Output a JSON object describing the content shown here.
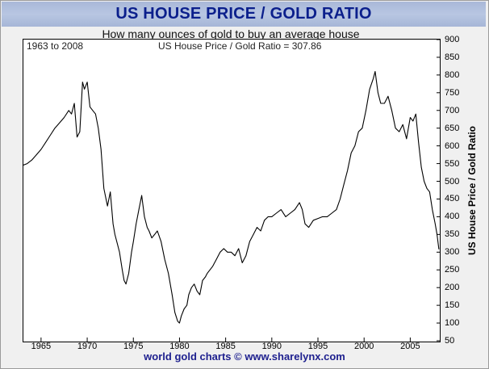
{
  "chart_data": {
    "type": "line",
    "title": "US HOUSE PRICE / GOLD RATIO",
    "subtitle": "How many ounces of gold to buy an average house",
    "annotation_left": "1963 to 2008",
    "annotation_right": "US House Price / Gold Ratio = 307.86",
    "ylabel": "US House Price / Gold Ratio",
    "footer": "world gold charts © www.sharelynx.com",
    "xlim": [
      1963,
      2008.2
    ],
    "ylim": [
      50,
      900
    ],
    "yticks": [
      50,
      100,
      150,
      200,
      250,
      300,
      350,
      400,
      450,
      500,
      550,
      600,
      650,
      700,
      750,
      800,
      850,
      900
    ],
    "xticks": [
      1965,
      1970,
      1975,
      1980,
      1985,
      1990,
      1995,
      2000,
      2005
    ],
    "grid": false,
    "line_color": "#000000",
    "series": [
      {
        "x": [
          1963.0,
          1963.5,
          1964.0,
          1964.5,
          1965.0,
          1965.5,
          1966.0,
          1966.5,
          1967.0,
          1967.5,
          1968.0,
          1968.3,
          1968.6,
          1968.9,
          1969.2,
          1969.5,
          1969.7,
          1970.0,
          1970.3,
          1970.6,
          1970.9,
          1971.2,
          1971.5,
          1971.8,
          1972.2,
          1972.5,
          1972.8,
          1973.0,
          1973.2,
          1973.5,
          1973.8,
          1974.0,
          1974.2,
          1974.5,
          1974.8,
          1975.0,
          1975.3,
          1975.6,
          1975.9,
          1976.2,
          1976.5,
          1976.7,
          1977.0,
          1977.3,
          1977.6,
          1978.0,
          1978.4,
          1978.8,
          1979.2,
          1979.5,
          1979.8,
          1980.0,
          1980.2,
          1980.5,
          1980.8,
          1981.0,
          1981.3,
          1981.6,
          1981.9,
          1982.2,
          1982.5,
          1982.8,
          1983.0,
          1983.3,
          1983.6,
          1984.0,
          1984.4,
          1984.8,
          1985.2,
          1985.6,
          1986.0,
          1986.4,
          1986.8,
          1987.2,
          1987.6,
          1988.0,
          1988.4,
          1988.8,
          1989.2,
          1989.6,
          1990.0,
          1990.5,
          1991.0,
          1991.5,
          1992.0,
          1992.5,
          1993.0,
          1993.3,
          1993.6,
          1994.0,
          1994.5,
          1995.0,
          1995.5,
          1996.0,
          1996.5,
          1997.0,
          1997.4,
          1997.8,
          1998.2,
          1998.6,
          1999.0,
          1999.4,
          1999.8,
          2000.2,
          2000.6,
          2001.0,
          2001.2,
          2001.5,
          2001.8,
          2002.2,
          2002.6,
          2003.0,
          2003.4,
          2003.8,
          2004.2,
          2004.6,
          2005.0,
          2005.3,
          2005.6,
          2005.9,
          2006.2,
          2006.5,
          2006.8,
          2007.1,
          2007.4,
          2007.7,
          2007.9,
          2008.1
        ],
        "y": [
          545,
          550,
          560,
          575,
          590,
          610,
          630,
          650,
          665,
          680,
          700,
          690,
          720,
          625,
          640,
          780,
          760,
          780,
          710,
          700,
          690,
          650,
          590,
          480,
          430,
          470,
          380,
          350,
          330,
          300,
          250,
          220,
          210,
          240,
          300,
          330,
          380,
          420,
          460,
          400,
          370,
          360,
          340,
          350,
          360,
          330,
          280,
          240,
          180,
          130,
          105,
          100,
          120,
          140,
          150,
          180,
          200,
          210,
          190,
          180,
          220,
          230,
          240,
          250,
          260,
          280,
          300,
          310,
          300,
          300,
          290,
          310,
          270,
          290,
          330,
          350,
          370,
          360,
          390,
          400,
          400,
          410,
          420,
          400,
          410,
          420,
          440,
          420,
          380,
          370,
          390,
          395,
          400,
          400,
          410,
          420,
          450,
          490,
          530,
          580,
          600,
          640,
          650,
          700,
          760,
          790,
          810,
          750,
          720,
          720,
          740,
          700,
          650,
          640,
          660,
          620,
          680,
          670,
          690,
          610,
          540,
          500,
          480,
          470,
          420,
          380,
          350,
          308
        ]
      }
    ]
  }
}
